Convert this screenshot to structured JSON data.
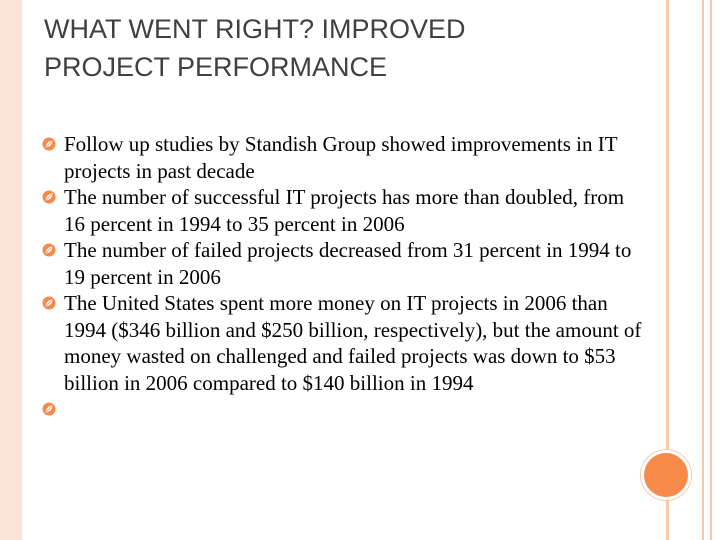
{
  "slide": {
    "title_line1": "WHAT WENT RIGHT? IMPROVED",
    "title_line2": "PROJECT PERFORMANCE",
    "bullets": [
      "Follow up studies by Standish Group showed improvements in IT projects in past decade",
      "The number of successful IT projects has more than doubled, from 16 percent in 1994 to 35 percent in 2006",
      "The number of failed projects decreased from 31 percent in 1994 to 19 percent in 2006",
      "The United States spent more money on IT projects in 2006 than 1994 ($346 billion and $250 billion, respectively), but the amount of money wasted on challenged and failed projects was down to $53 billion in 2006 compared to $140 billion in 1994",
      ""
    ],
    "bullet_icon": "leaf-bullet-icon",
    "colors": {
      "accent": "#f58a4b",
      "frame": "#fbe4d5",
      "title": "#404040"
    }
  }
}
